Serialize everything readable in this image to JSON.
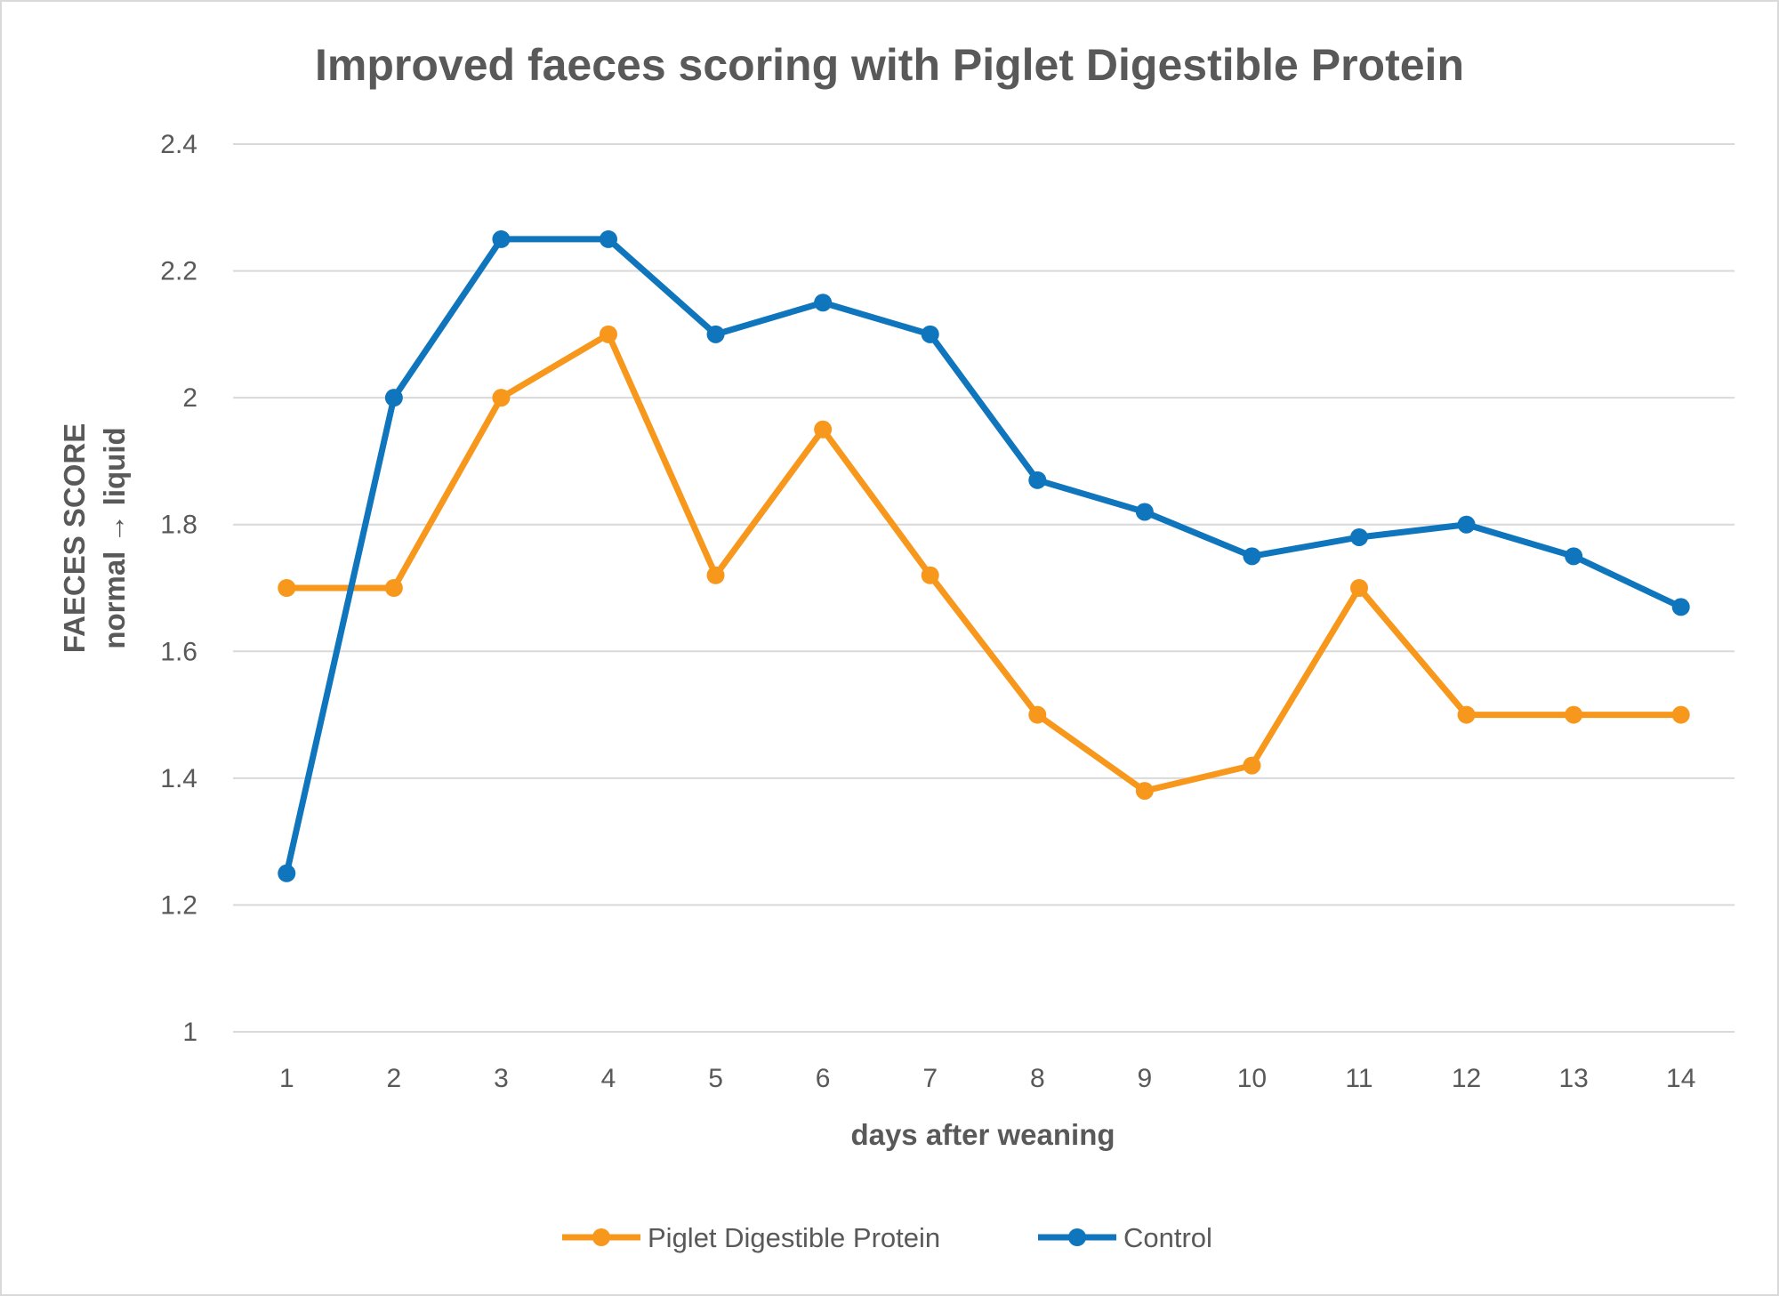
{
  "chart_data": {
    "type": "line",
    "title": "Improved faeces scoring with Piglet Digestible Protein",
    "xlabel": "days after weaning",
    "ylabel_line1": "FAECES SCORE",
    "ylabel_line2": "normal → liquid",
    "categories": [
      "1",
      "2",
      "3",
      "4",
      "5",
      "6",
      "7",
      "8",
      "9",
      "10",
      "11",
      "12",
      "13",
      "14"
    ],
    "y_ticks": [
      "1",
      "1.2",
      "1.4",
      "1.6",
      "1.8",
      "2",
      "2.2",
      "2.4"
    ],
    "ylim": [
      1,
      2.4
    ],
    "grid": true,
    "legend_position": "bottom",
    "series": [
      {
        "name": "Piglet Digestible Protein",
        "color": "#f7981d",
        "values": [
          1.7,
          1.7,
          2.0,
          2.1,
          1.72,
          1.95,
          1.72,
          1.5,
          1.38,
          1.42,
          1.7,
          1.5,
          1.5,
          1.5
        ]
      },
      {
        "name": "Control",
        "color": "#0f75bc",
        "values": [
          1.25,
          2.0,
          2.25,
          2.25,
          2.1,
          2.15,
          2.1,
          1.87,
          1.82,
          1.75,
          1.78,
          1.8,
          1.75,
          1.67
        ]
      }
    ]
  }
}
